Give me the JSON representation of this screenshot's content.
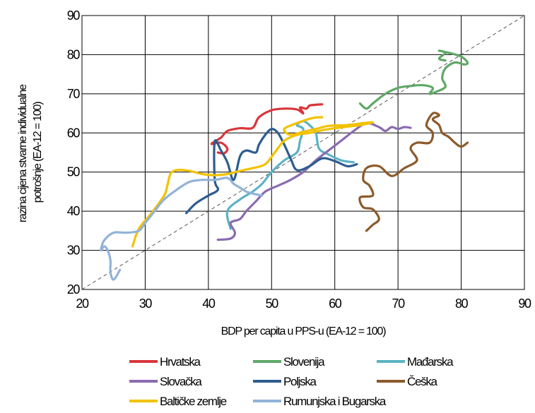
{
  "chart_data": {
    "type": "line",
    "xlabel": "BDP per capita u PPS-u (EA-12 = 100)",
    "ylabel": "razina cijena stvarne individualne potrošnje (EA-12 = 100)",
    "ylabel_lines": [
      "razina cijena stvarne individualne",
      "potrošnje (EA-12 = 100)"
    ],
    "xlim": [
      20,
      90
    ],
    "ylim": [
      20,
      90
    ],
    "x_ticks": [
      "20",
      "30",
      "40",
      "50",
      "60",
      "70",
      "80",
      "90"
    ],
    "y_ticks": [
      "20",
      "30",
      "40",
      "50",
      "60",
      "70",
      "80",
      "90"
    ],
    "grid": true,
    "reference_line": "y = x",
    "legend_position": "bottom",
    "series": [
      {
        "name": "Hrvatska",
        "color": "#d9363a",
        "points": [
          [
            41.5,
            55
          ],
          [
            42.5,
            54.8
          ],
          [
            43,
            56
          ],
          [
            42,
            57.5
          ],
          [
            40.5,
            57.2
          ],
          [
            42,
            58.8
          ],
          [
            43,
            60.5
          ],
          [
            45,
            61.2
          ],
          [
            47,
            61.3
          ],
          [
            48,
            64
          ],
          [
            50,
            65.8
          ],
          [
            52,
            66.2
          ],
          [
            54,
            66
          ],
          [
            55,
            65
          ],
          [
            54.5,
            66.5
          ],
          [
            55.5,
            66.2
          ],
          [
            56,
            67
          ],
          [
            57,
            67.2
          ],
          [
            58,
            67.3
          ]
        ]
      },
      {
        "name": "Slovenija",
        "color": "#5fa867",
        "points": [
          [
            64,
            67.5
          ],
          [
            65,
            66.2
          ],
          [
            66,
            67.5
          ],
          [
            68,
            70
          ],
          [
            70,
            71.5
          ],
          [
            72,
            72
          ],
          [
            74,
            72.2
          ],
          [
            75.5,
            71.5
          ],
          [
            75,
            70
          ],
          [
            76,
            70.5
          ],
          [
            77.5,
            71.8
          ],
          [
            77,
            74
          ],
          [
            77.5,
            76.5
          ],
          [
            79,
            78
          ],
          [
            80.5,
            77.5
          ],
          [
            81,
            78
          ],
          [
            80,
            79.5
          ],
          [
            78,
            80.5
          ],
          [
            76.5,
            81
          ],
          [
            77.5,
            80.5
          ],
          [
            76.5,
            79
          ],
          [
            77.5,
            78.5
          ]
        ]
      },
      {
        "name": "Mađarska",
        "color": "#5bb3c4",
        "points": [
          [
            43.5,
            35.5
          ],
          [
            43,
            40
          ],
          [
            45,
            43
          ],
          [
            47,
            45
          ],
          [
            48.5,
            47
          ],
          [
            50,
            50
          ],
          [
            52,
            53
          ],
          [
            54,
            55
          ],
          [
            54.5,
            58
          ],
          [
            55,
            61
          ],
          [
            54,
            62
          ],
          [
            55,
            63
          ],
          [
            56,
            62
          ],
          [
            57,
            60
          ],
          [
            57.5,
            56
          ],
          [
            59,
            54.5
          ],
          [
            61,
            53
          ],
          [
            63,
            52.5
          ]
        ]
      },
      {
        "name": "Slovačka",
        "color": "#8a6bb0",
        "points": [
          [
            41.5,
            32.7
          ],
          [
            43.5,
            33
          ],
          [
            44.2,
            34.5
          ],
          [
            43.5,
            37
          ],
          [
            45,
            38
          ],
          [
            46,
            40
          ],
          [
            47.5,
            42.5
          ],
          [
            49,
            45
          ],
          [
            51,
            46.5
          ],
          [
            53,
            48
          ],
          [
            55,
            50
          ],
          [
            57,
            53
          ],
          [
            59,
            55.5
          ],
          [
            61,
            58
          ],
          [
            63,
            60.5
          ],
          [
            65,
            62.5
          ],
          [
            67,
            61.5
          ],
          [
            68,
            60.5
          ],
          [
            69,
            61.5
          ],
          [
            70,
            61
          ],
          [
            71,
            61.5
          ],
          [
            72,
            61.3
          ]
        ]
      },
      {
        "name": "Poljska",
        "color": "#2d5d8e",
        "points": [
          [
            36.5,
            39.5
          ],
          [
            38,
            42
          ],
          [
            40,
            44
          ],
          [
            41.5,
            45.5
          ],
          [
            41,
            48
          ],
          [
            41,
            57.8
          ],
          [
            42,
            55.5
          ],
          [
            43,
            52.5
          ],
          [
            44,
            48
          ],
          [
            45,
            54
          ],
          [
            46,
            55.5
          ],
          [
            47.5,
            55
          ],
          [
            48,
            57
          ],
          [
            49,
            59.5
          ],
          [
            50,
            61
          ],
          [
            51,
            60
          ],
          [
            52,
            57
          ],
          [
            53,
            53.5
          ],
          [
            54,
            50.5
          ],
          [
            56,
            51.5
          ],
          [
            58,
            53.5
          ],
          [
            60,
            52.8
          ],
          [
            62,
            51.5
          ],
          [
            63.5,
            52
          ]
        ]
      },
      {
        "name": "Češka",
        "color": "#8c5a2b",
        "points": [
          [
            65,
            35
          ],
          [
            66,
            36.5
          ],
          [
            67,
            38
          ],
          [
            66,
            40.5
          ],
          [
            64.5,
            41
          ],
          [
            64,
            43.5
          ],
          [
            66,
            44
          ],
          [
            65.5,
            46.5
          ],
          [
            64.5,
            48
          ],
          [
            65,
            51
          ],
          [
            67,
            51.5
          ],
          [
            69,
            49
          ],
          [
            71,
            51
          ],
          [
            73,
            53
          ],
          [
            72,
            56
          ],
          [
            73,
            57.5
          ],
          [
            75,
            57.5
          ],
          [
            75.5,
            60
          ],
          [
            74.5,
            62
          ],
          [
            75.5,
            65
          ],
          [
            76.5,
            64.5
          ],
          [
            75.5,
            63.5
          ],
          [
            76.5,
            62
          ],
          [
            77,
            60
          ],
          [
            78,
            59
          ],
          [
            79,
            57.5
          ],
          [
            80,
            56.5
          ],
          [
            81,
            57.5
          ]
        ]
      },
      {
        "name": "Baltičke zemlje",
        "color": "#f2c200",
        "points": [
          [
            28,
            31
          ],
          [
            29,
            35.5
          ],
          [
            31,
            39.5
          ],
          [
            33,
            44
          ],
          [
            33.5,
            46.5
          ],
          [
            34,
            49.5
          ],
          [
            35,
            50.5
          ],
          [
            37,
            50.3
          ],
          [
            39,
            49.5
          ],
          [
            41,
            49.2
          ],
          [
            43,
            49.5
          ],
          [
            45,
            50.3
          ],
          [
            47,
            51
          ],
          [
            49,
            52
          ],
          [
            50.5,
            55
          ],
          [
            52,
            58
          ],
          [
            54,
            59.5
          ],
          [
            56,
            60
          ],
          [
            58,
            60.7
          ],
          [
            60,
            61.2
          ],
          [
            62,
            61.6
          ],
          [
            64,
            62
          ],
          [
            66,
            62.7
          ],
          [
            64.5,
            62.5
          ],
          [
            62,
            62
          ],
          [
            59,
            61.8
          ],
          [
            57,
            61
          ],
          [
            55,
            60.3
          ],
          [
            53,
            59.5
          ],
          [
            52,
            61
          ],
          [
            54,
            62.5
          ],
          [
            56.5,
            63.8
          ],
          [
            58,
            64
          ]
        ]
      },
      {
        "name": "Rumunjska i Bugarska",
        "color": "#92b3d8",
        "points": [
          [
            26,
            25
          ],
          [
            25,
            22.5
          ],
          [
            24.5,
            24.5
          ],
          [
            24.5,
            27.5
          ],
          [
            24,
            30.2
          ],
          [
            23.5,
            31
          ],
          [
            23,
            30
          ],
          [
            23.5,
            32.5
          ],
          [
            25,
            34.5
          ],
          [
            27,
            34.5
          ],
          [
            29,
            35
          ],
          [
            30,
            37
          ],
          [
            31.5,
            40
          ],
          [
            33,
            43
          ],
          [
            35,
            45.5
          ],
          [
            37,
            47.5
          ],
          [
            39,
            48
          ],
          [
            41,
            48
          ],
          [
            43,
            48.5
          ],
          [
            44,
            47
          ],
          [
            45,
            46
          ],
          [
            46,
            45
          ],
          [
            47,
            44.5
          ],
          [
            48.5,
            44
          ]
        ]
      }
    ]
  }
}
